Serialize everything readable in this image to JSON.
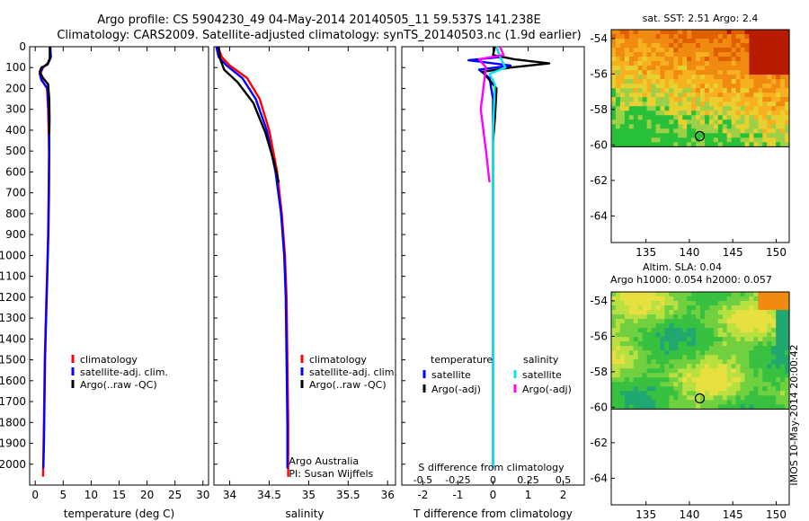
{
  "header": {
    "line1": "Argo profile: CS 5904230_49 04-May-2014 20140505_11 59.537S 141.238E",
    "line2": "Climatology: CARS2009. Satellite-adjusted climatology: synTS_20140503.nc (1.9d earlier)"
  },
  "side_stamp": "IMOS 10-May-2014 20:00:42",
  "colors": {
    "climatology": "#ff0000",
    "satellite_adj": "#0000ff",
    "argo": "#000000",
    "s_satellite": "#00e5ee",
    "s_argo": "#ff00ff"
  },
  "chart_data": [
    {
      "type": "line",
      "id": "temperature",
      "xlabel": "temperature (deg C)",
      "ylabel": "",
      "xlim": [
        -1,
        31
      ],
      "ylim": [
        2100,
        0
      ],
      "xticks": [
        0,
        5,
        10,
        15,
        20,
        25,
        30
      ],
      "yticks": [
        0,
        100,
        200,
        300,
        400,
        500,
        600,
        700,
        800,
        900,
        1000,
        1100,
        1200,
        1300,
        1400,
        1500,
        1600,
        1700,
        1800,
        1900,
        2000
      ],
      "legend": [
        "climatology",
        "satellite-adj. clim.",
        "Argo(..raw -QC)"
      ],
      "series": [
        {
          "name": "climatology",
          "color": "#ff0000",
          "x": [
            2.6,
            2.7,
            2.2,
            1.4,
            0.9,
            1.2,
            2.1,
            2.3,
            2.4,
            2.45,
            2.4,
            2.3,
            2.1,
            1.9,
            1.7,
            1.6,
            1.5,
            1.4
          ],
          "y": [
            0,
            50,
            80,
            100,
            130,
            160,
            200,
            300,
            400,
            500,
            700,
            900,
            1100,
            1300,
            1500,
            1700,
            1900,
            2060
          ]
        },
        {
          "name": "satellite-adj. clim.",
          "color": "#0000ff",
          "x": [
            2.7,
            2.8,
            2.3,
            1.3,
            0.8,
            1.1,
            2.2,
            2.4,
            2.5,
            2.5,
            2.45,
            2.35,
            2.15,
            1.95,
            1.75,
            1.65,
            1.55,
            1.45
          ],
          "y": [
            0,
            50,
            80,
            100,
            130,
            160,
            200,
            300,
            400,
            500,
            700,
            900,
            1100,
            1300,
            1500,
            1700,
            1900,
            2020
          ]
        },
        {
          "name": "Argo(..raw -QC)",
          "color": "#000000",
          "x": [
            2.6,
            2.6,
            2.2,
            1.1,
            0.8,
            1.4,
            2.3,
            2.5,
            2.55,
            2.5
          ],
          "y": [
            0,
            60,
            85,
            100,
            120,
            150,
            180,
            250,
            350,
            420
          ]
        }
      ]
    },
    {
      "type": "line",
      "id": "salinity",
      "xlabel": "salinity",
      "xlim": [
        33.8,
        36.1
      ],
      "ylim": [
        2100,
        0
      ],
      "xticks": [
        34,
        34.5,
        35,
        35.5,
        36
      ],
      "legend": [
        "climatology",
        "satellite-adj. clim.",
        "Argo(..raw -QC)"
      ],
      "annotations": [
        "Argo Australia",
        "PI: Susan Wijffels"
      ],
      "series": [
        {
          "name": "climatology",
          "color": "#ff0000",
          "x": [
            33.85,
            33.9,
            34.0,
            34.22,
            34.38,
            34.5,
            34.6,
            34.66,
            34.7,
            34.72,
            34.73,
            34.74,
            34.74
          ],
          "y": [
            0,
            50,
            90,
            150,
            250,
            400,
            600,
            800,
            1000,
            1200,
            1500,
            1800,
            2060
          ]
        },
        {
          "name": "satellite-adj. clim.",
          "color": "#0000ff",
          "x": [
            33.83,
            33.86,
            33.96,
            34.16,
            34.33,
            34.47,
            34.58,
            34.65,
            34.69,
            34.71,
            34.72,
            34.73,
            34.73
          ],
          "y": [
            0,
            50,
            90,
            150,
            250,
            400,
            600,
            800,
            1000,
            1200,
            1500,
            1800,
            2020
          ]
        },
        {
          "name": "Argo(..raw -QC)",
          "color": "#000000",
          "x": [
            33.86,
            33.88,
            33.93,
            34.1,
            34.3,
            34.45,
            34.56,
            34.62
          ],
          "y": [
            0,
            60,
            110,
            170,
            270,
            410,
            550,
            650
          ]
        }
      ]
    },
    {
      "type": "line",
      "id": "difference",
      "xlabel": "T difference from climatology",
      "xlabel_top": "S difference from climatology",
      "xlim": [
        -2.6,
        2.6
      ],
      "ylim": [
        2100,
        0
      ],
      "xticks": [
        -2,
        -1,
        0,
        1,
        2
      ],
      "top_xticks": [
        -0.5,
        -0.25,
        0,
        0.25,
        0.5
      ],
      "legend_headers": [
        "temperature",
        "salinity"
      ],
      "legend": [
        "satellite",
        "Argo(-adj)",
        "satellite",
        "Argo(-adj)"
      ],
      "series": [
        {
          "name": "temperature satellite",
          "color": "#0000ff",
          "x": [
            0.1,
            0.2,
            -0.7,
            0.5,
            -0.4,
            -0.1,
            0.0,
            0.0,
            0.0,
            0.0
          ],
          "y": [
            0,
            50,
            65,
            90,
            110,
            150,
            250,
            500,
            1000,
            2020
          ]
        },
        {
          "name": "temperature Argo(-adj)",
          "color": "#000000",
          "x": [
            0.05,
            0.0,
            0.6,
            1.6,
            0.5,
            -0.3,
            0.1,
            0.05,
            0.0
          ],
          "y": [
            0,
            40,
            60,
            80,
            100,
            120,
            200,
            350,
            450
          ]
        },
        {
          "name": "salinity satellite",
          "color": "#00e5ee",
          "x": [
            0.1,
            0.2,
            0.35,
            -0.1,
            0.05,
            0.0,
            0.0,
            0.0
          ],
          "y": [
            0,
            50,
            100,
            130,
            180,
            400,
            1000,
            2020
          ]
        },
        {
          "name": "salinity Argo(-adj)",
          "color": "#ff00ff",
          "x": [
            0.2,
            0.3,
            -0.4,
            -0.2,
            -0.35,
            -0.2,
            -0.1
          ],
          "y": [
            0,
            40,
            60,
            100,
            300,
            500,
            650
          ]
        }
      ]
    },
    {
      "type": "heatmap",
      "id": "sst_map",
      "title": "sat. SST: 2.51 Argo: 2.4",
      "xlim": [
        131,
        151.5
      ],
      "ylim": [
        -65.5,
        -53.5
      ],
      "xticks": [
        135,
        140,
        145,
        150
      ],
      "yticks": [
        -54,
        -56,
        -58,
        -60,
        -62,
        -64
      ],
      "marker": {
        "lon": 141.2,
        "lat": -59.5
      }
    },
    {
      "type": "heatmap",
      "id": "sla_map",
      "title_lines": [
        "Altim. SLA: 0.04",
        "Argo h1000: 0.054 h2000: 0.057"
      ],
      "xlim": [
        131,
        151.5
      ],
      "ylim": [
        -65.5,
        -53.5
      ],
      "xticks": [
        135,
        140,
        145,
        150
      ],
      "yticks": [
        -54,
        -56,
        -58,
        -60,
        -62,
        -64
      ],
      "marker": {
        "lon": 141.2,
        "lat": -59.5
      }
    }
  ]
}
